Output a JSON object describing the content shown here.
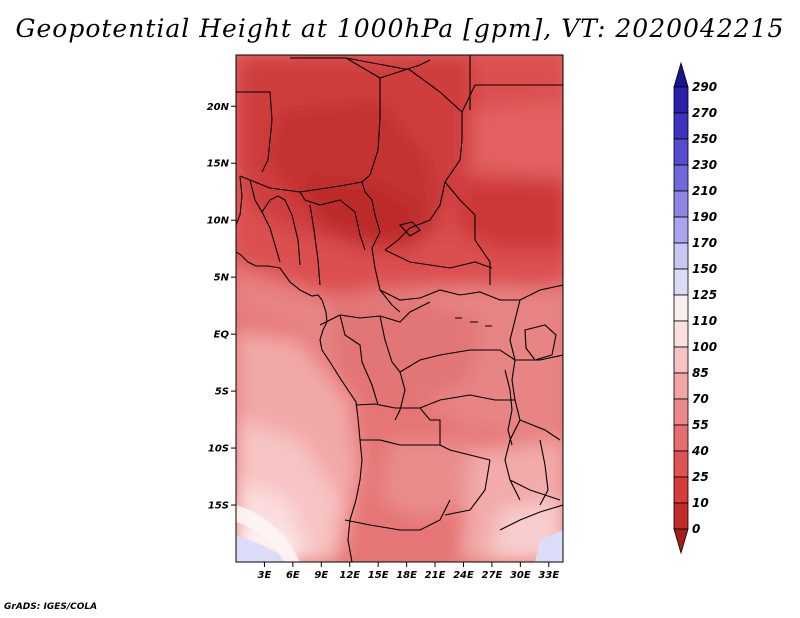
{
  "title": "Geopotential Height at 1000hPa [gpm], VT: 2020042215",
  "credit": "GrADS: IGES/COLA",
  "map": {
    "lat_labels": [
      "20N",
      "15N",
      "10N",
      "5N",
      "EQ",
      "5S",
      "10S",
      "15S"
    ],
    "lat_values": [
      20,
      15,
      10,
      5,
      0,
      -5,
      -10,
      -15
    ],
    "lon_labels": [
      "3E",
      "6E",
      "9E",
      "12E",
      "15E",
      "18E",
      "21E",
      "24E",
      "27E",
      "30E",
      "33E"
    ],
    "lon_values": [
      3,
      6,
      9,
      12,
      15,
      18,
      21,
      24,
      27,
      30,
      33
    ],
    "lat_range": [
      -20,
      24.5
    ],
    "lon_range": [
      0,
      34.5
    ]
  },
  "colorbar": {
    "labels": [
      "0",
      "10",
      "25",
      "40",
      "55",
      "70",
      "85",
      "100",
      "110",
      "125",
      "150",
      "170",
      "190",
      "210",
      "230",
      "250",
      "270",
      "290"
    ],
    "colors": [
      "#a31d1d",
      "#c42a2a",
      "#d63c3c",
      "#e05353",
      "#e66e6e",
      "#ec8a8a",
      "#f2a5a5",
      "#f7c2c2",
      "#fbdede",
      "#fbf0f0",
      "#dcdcf8",
      "#c8c8f5",
      "#aaa5ee",
      "#8e87e6",
      "#7168dc",
      "#564ccf",
      "#3c33bf",
      "#2a20aa",
      "#1a138f"
    ]
  }
}
